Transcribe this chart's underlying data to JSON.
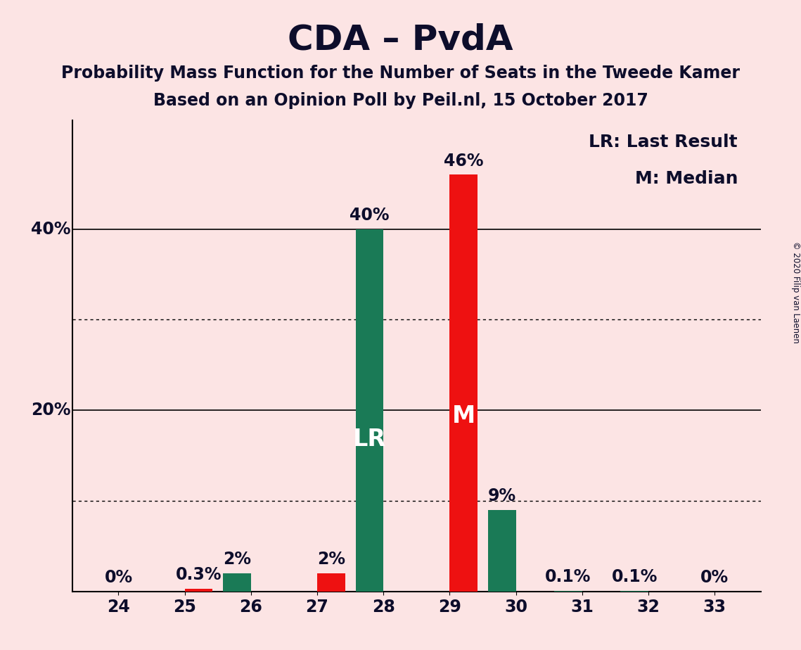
{
  "title": "CDA – PvdA",
  "subtitle1": "Probability Mass Function for the Number of Seats in the Tweede Kamer",
  "subtitle2": "Based on an Opinion Poll by Peil.nl, 15 October 2017",
  "copyright": "© 2020 Filip van Laenen",
  "categories": [
    24,
    25,
    26,
    27,
    28,
    29,
    30,
    31,
    32,
    33
  ],
  "green_values": [
    0.0,
    0.0,
    2.0,
    0.0,
    40.0,
    0.0,
    9.0,
    0.1,
    0.1,
    0.0
  ],
  "red_values": [
    0.0,
    0.3,
    0.0,
    2.0,
    0.0,
    46.0,
    0.0,
    0.0,
    0.0,
    0.0
  ],
  "green_color": "#1a7a56",
  "red_color": "#ee1111",
  "background_color": "#fce4e4",
  "bar_width": 0.42,
  "lr_seat": 28,
  "median_seat": 29,
  "lr_label": "LR",
  "median_label": "M",
  "legend_lr": "LR: Last Result",
  "legend_m": "M: Median",
  "ylim": [
    0,
    52
  ],
  "dotted_grid_values": [
    10,
    30
  ],
  "solid_grid_values": [
    20,
    40
  ],
  "title_fontsize": 36,
  "subtitle_fontsize": 17,
  "label_fontsize": 17,
  "tick_fontsize": 17,
  "legend_fontsize": 18,
  "inbar_fontsize": 24,
  "text_color": "#0d0d2b",
  "ytick_positions": [
    20,
    40
  ],
  "ytick_labels": [
    "20%",
    "40%"
  ]
}
